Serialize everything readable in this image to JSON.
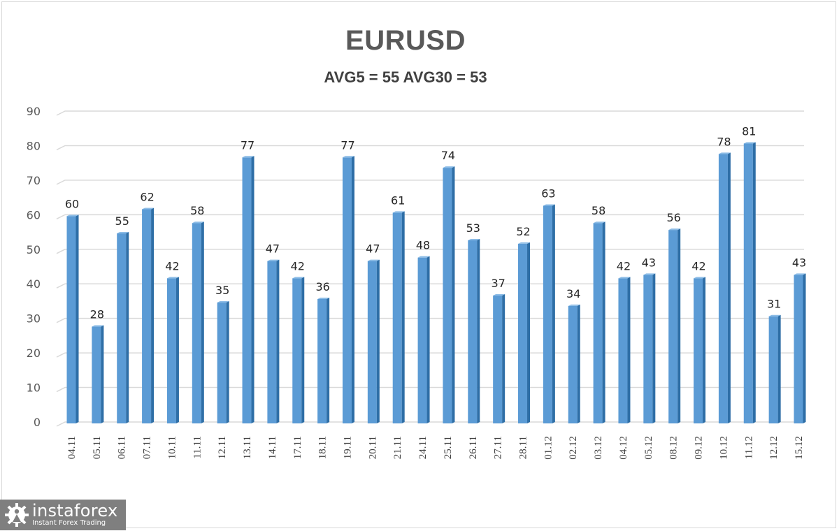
{
  "header": {
    "title": "EURUSD",
    "subtitle": "AVG5 = 55 AVG30 = 53"
  },
  "logo": {
    "icon": "gear-person-icon",
    "name": "instaforex",
    "tagline": "Instant Forex Trading"
  },
  "colors": {
    "bar_fill": "#5b9bd5",
    "bar_side": "#2e6ea6",
    "gridline": "#d9d9d9",
    "title": "#595959",
    "logo_bg": "#7f7f7f"
  },
  "chart_data": {
    "type": "bar",
    "title": "EURUSD",
    "subtitle": "AVG5 = 55 AVG30 = 53",
    "xlabel": "",
    "ylabel": "",
    "ylim": [
      0,
      90
    ],
    "yticks": [
      0,
      10,
      20,
      30,
      40,
      50,
      60,
      70,
      80,
      90
    ],
    "grid": true,
    "legend": null,
    "data_labels": true,
    "categories": [
      "04.11",
      "05.11",
      "06.11",
      "07.11",
      "10.11",
      "11.11",
      "12.11",
      "13.11",
      "14.11",
      "17.11",
      "18.11",
      "19.11",
      "20.11",
      "21.11",
      "24.11",
      "25.11",
      "26.11",
      "27.11",
      "28.11",
      "01.12",
      "02.12",
      "03.12",
      "04.12",
      "05.12",
      "08.12",
      "09.12",
      "10.12",
      "11.12",
      "12.12",
      "15.12"
    ],
    "values": [
      60,
      28,
      55,
      62,
      42,
      58,
      35,
      77,
      47,
      42,
      36,
      77,
      47,
      61,
      48,
      74,
      53,
      37,
      52,
      63,
      34,
      58,
      42,
      43,
      56,
      42,
      78,
      81,
      31,
      43
    ]
  }
}
